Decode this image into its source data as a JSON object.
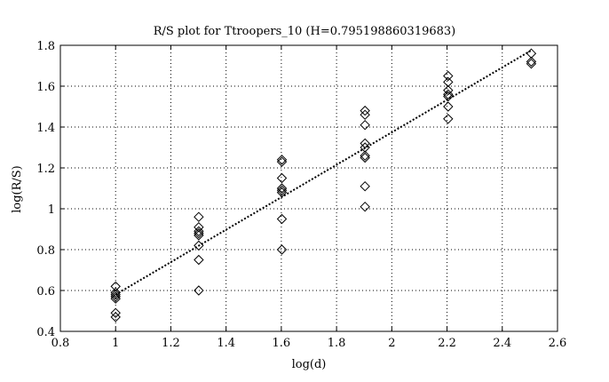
{
  "chart_data": {
    "type": "scatter",
    "title": "R/S plot for Ttroopers_10 (H=0.795198860319683)",
    "xlabel": "log(d)",
    "ylabel": "log(R/S)",
    "xlim": [
      0.8,
      2.6
    ],
    "ylim": [
      0.4,
      1.8
    ],
    "x_ticks": [
      0.8,
      1,
      1.2,
      1.4,
      1.6,
      1.8,
      2,
      2.2,
      2.4,
      2.6
    ],
    "y_ticks": [
      0.4,
      0.6,
      0.8,
      1,
      1.2,
      1.4,
      1.6,
      1.8
    ],
    "x_tick_labels": [
      "0.8",
      "1",
      "1.2",
      "1.4",
      "1.6",
      "1.8",
      "2",
      "2.2",
      "2.4",
      "2.6"
    ],
    "y_tick_labels": [
      "0.4",
      "0.6",
      "0.8",
      "1",
      "1.2",
      "1.4",
      "1.6",
      "1.8"
    ],
    "grid": true,
    "marker": "diamond",
    "points": [
      {
        "x": 1.0,
        "y": 0.62
      },
      {
        "x": 1.0,
        "y": 0.59
      },
      {
        "x": 1.0,
        "y": 0.58
      },
      {
        "x": 1.0,
        "y": 0.57
      },
      {
        "x": 1.0,
        "y": 0.56
      },
      {
        "x": 1.0,
        "y": 0.49
      },
      {
        "x": 1.0,
        "y": 0.47
      },
      {
        "x": 1.301,
        "y": 0.96
      },
      {
        "x": 1.301,
        "y": 0.91
      },
      {
        "x": 1.301,
        "y": 0.89
      },
      {
        "x": 1.301,
        "y": 0.88
      },
      {
        "x": 1.301,
        "y": 0.87
      },
      {
        "x": 1.301,
        "y": 0.82
      },
      {
        "x": 1.301,
        "y": 0.75
      },
      {
        "x": 1.301,
        "y": 0.6
      },
      {
        "x": 1.602,
        "y": 1.24
      },
      {
        "x": 1.602,
        "y": 1.23
      },
      {
        "x": 1.602,
        "y": 1.15
      },
      {
        "x": 1.602,
        "y": 1.1
      },
      {
        "x": 1.602,
        "y": 1.09
      },
      {
        "x": 1.602,
        "y": 1.08
      },
      {
        "x": 1.602,
        "y": 0.95
      },
      {
        "x": 1.602,
        "y": 0.8
      },
      {
        "x": 1.903,
        "y": 1.48
      },
      {
        "x": 1.903,
        "y": 1.46
      },
      {
        "x": 1.903,
        "y": 1.41
      },
      {
        "x": 1.903,
        "y": 1.32
      },
      {
        "x": 1.903,
        "y": 1.3
      },
      {
        "x": 1.903,
        "y": 1.26
      },
      {
        "x": 1.903,
        "y": 1.25
      },
      {
        "x": 1.903,
        "y": 1.11
      },
      {
        "x": 1.903,
        "y": 1.01
      },
      {
        "x": 2.204,
        "y": 1.65
      },
      {
        "x": 2.204,
        "y": 1.62
      },
      {
        "x": 2.204,
        "y": 1.58
      },
      {
        "x": 2.204,
        "y": 1.56
      },
      {
        "x": 2.204,
        "y": 1.55
      },
      {
        "x": 2.204,
        "y": 1.5
      },
      {
        "x": 2.204,
        "y": 1.44
      },
      {
        "x": 2.505,
        "y": 1.76
      },
      {
        "x": 2.505,
        "y": 1.72
      },
      {
        "x": 2.505,
        "y": 1.71
      }
    ],
    "fit_line": {
      "style": "dotted",
      "x": [
        1.0,
        2.505
      ],
      "y": [
        0.58,
        1.775
      ]
    }
  }
}
